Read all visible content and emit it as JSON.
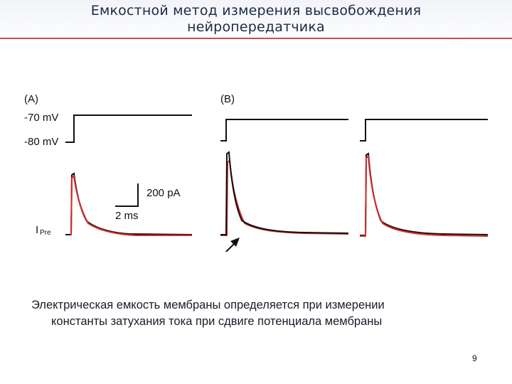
{
  "slide": {
    "title_line1": "Емкостной метод измерения высвобождения",
    "title_line2": "нейропередатчика",
    "caption_line1": "Электрическая емкость мембраны определяется при  измерении",
    "caption_line2": "константы затухания тока при сдвиге потенциала мембраны",
    "page_number": "9"
  },
  "figure": {
    "panel_a_label": "(A)",
    "panel_b_label": "(B)",
    "voltage_high_label": "-70 mV",
    "voltage_low_label": "-80 mV",
    "scale_current_label": "200 pA",
    "scale_time_label": "2 ms",
    "current_label_main": "I",
    "current_label_sub": "Pre",
    "colors": {
      "trace_black": "#111111",
      "trace_red": "#d42a2a",
      "rule": "#c85048"
    }
  }
}
